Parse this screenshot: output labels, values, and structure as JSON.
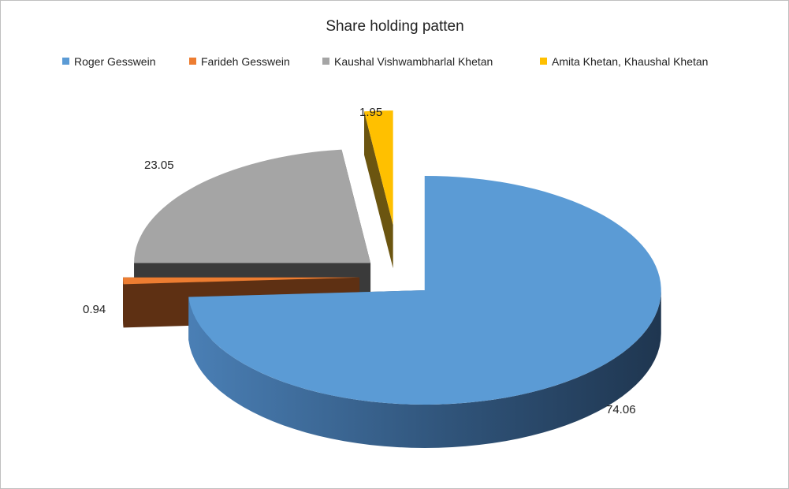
{
  "chart_data": {
    "type": "pie",
    "title": "Share holding patten",
    "legend_position": "top",
    "exploded": true,
    "three_d": true,
    "slices": [
      {
        "label": "Roger Gesswein",
        "value": 74.06,
        "color": "#5b9bd5"
      },
      {
        "label": "Farideh Gesswein",
        "value": 0.94,
        "color": "#ed7d31"
      },
      {
        "label": "Kaushal Vishwambharlal Khetan",
        "value": 23.05,
        "color": "#a5a5a5"
      },
      {
        "label": "Amita Khetan, Khaushal Khetan",
        "value": 1.95,
        "color": "#ffc000"
      }
    ]
  }
}
